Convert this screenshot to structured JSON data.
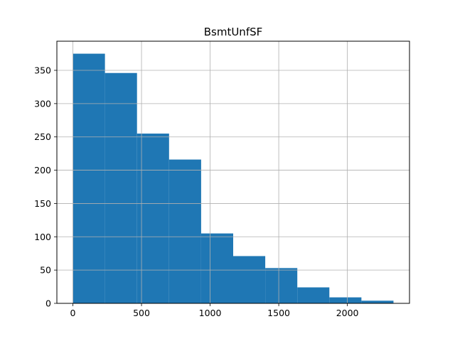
{
  "chart_data": {
    "type": "bar",
    "title": "BsmtUnfSF",
    "xlabel": "",
    "ylabel": "",
    "xlim": [
      -116.7,
      2452.7
    ],
    "ylim": [
      0,
      393.75
    ],
    "bin_edges": [
      0,
      233.6,
      467.2,
      700.8,
      934.4,
      1168,
      1401.6,
      1635.2,
      1868.8,
      2102.4,
      2336
    ],
    "values": [
      375,
      346,
      255,
      216,
      105,
      71,
      53,
      24,
      9,
      4
    ],
    "xticks": [
      0,
      500,
      1000,
      1500,
      2000
    ],
    "xtick_labels": [
      "0",
      "500",
      "1000",
      "1500",
      "2000"
    ],
    "yticks": [
      0,
      50,
      100,
      150,
      200,
      250,
      300,
      350
    ],
    "ytick_labels": [
      "0",
      "50",
      "100",
      "150",
      "200",
      "250",
      "300",
      "350"
    ],
    "grid": true,
    "bar_color": "#1f77b4",
    "grid_color": "#b0b0b0"
  }
}
